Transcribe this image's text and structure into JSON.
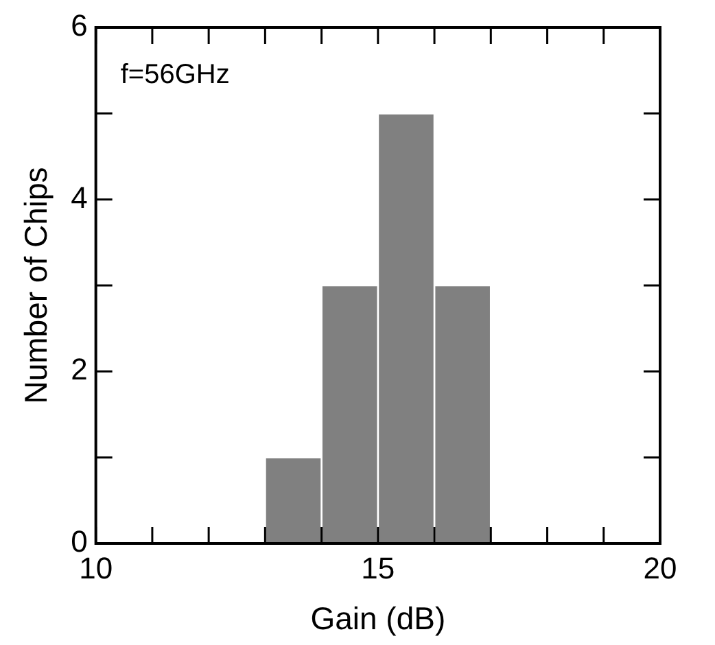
{
  "chart_data": {
    "type": "histogram",
    "xlabel": "Gain (dB)",
    "ylabel": "Number of Chips",
    "bins": [
      13,
      14,
      15,
      16,
      17
    ],
    "values": [
      1,
      3,
      5,
      3
    ],
    "color": "#808080",
    "xlim": [
      10,
      20
    ],
    "xticks": [
      10,
      {
        "value": 11,
        "label": null
      },
      {
        "value": 12,
        "label": null
      },
      {
        "value": 13,
        "label": null
      },
      {
        "value": 14,
        "label": null
      },
      15,
      {
        "value": 16,
        "label": null
      },
      {
        "value": 17,
        "label": null
      },
      {
        "value": 18,
        "label": null
      },
      {
        "value": 19,
        "label": null
      },
      20
    ],
    "ylim": [
      0,
      6
    ],
    "yticks": [
      0,
      {
        "value": 1,
        "label": null
      },
      2,
      {
        "value": 3,
        "label": null
      },
      4,
      {
        "value": 5,
        "label": null
      },
      6
    ],
    "annotations": [
      "f=56GHz"
    ],
    "grid": false,
    "legend": false
  }
}
